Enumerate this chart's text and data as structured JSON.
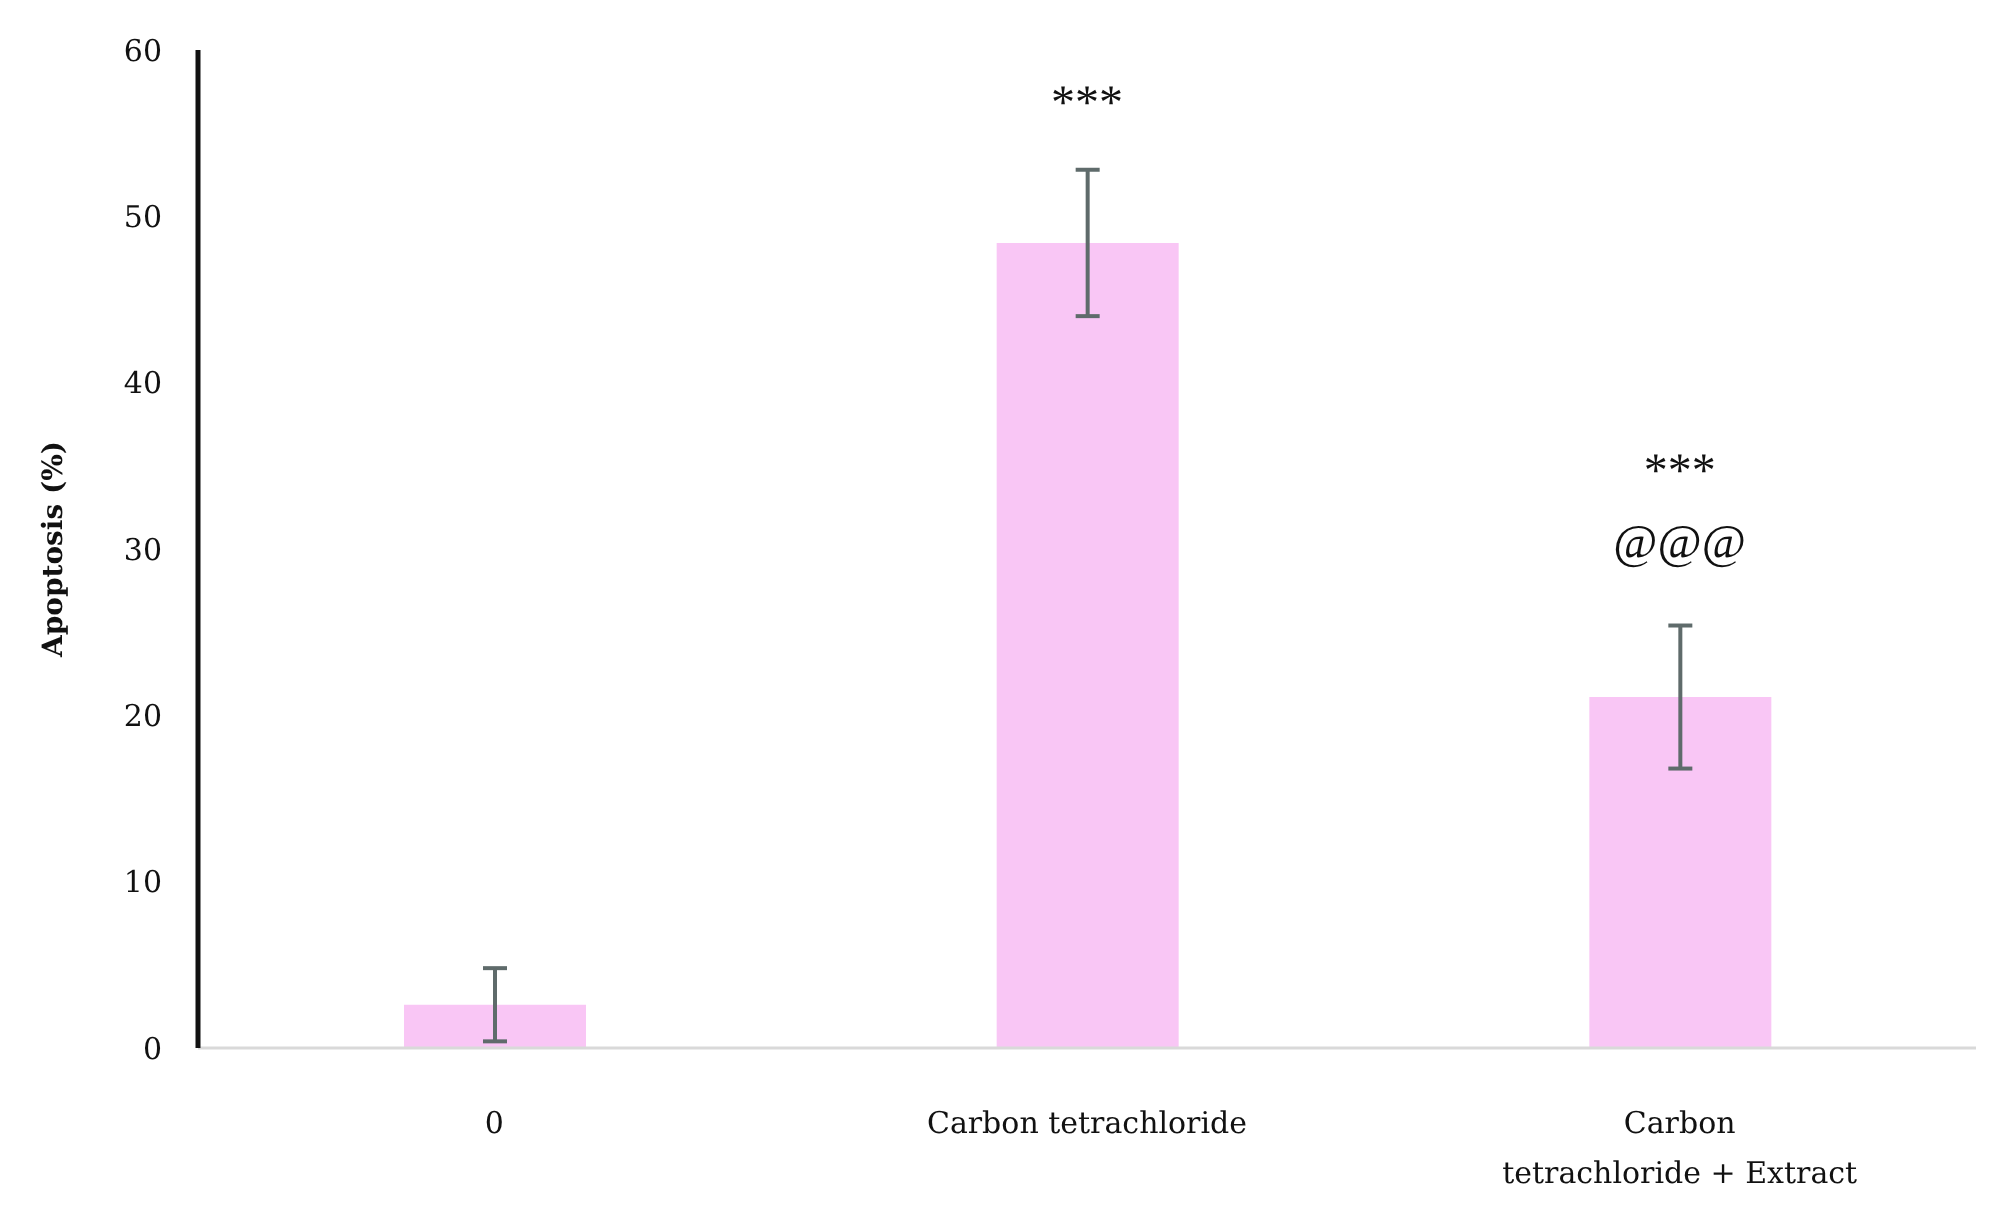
{
  "chart_data": {
    "type": "bar",
    "ylabel": "Apoptosis (%)",
    "categories": [
      "0",
      "Carbon tetrachloride",
      "Carbon\ntetrachloride + Extract"
    ],
    "values": [
      2.6,
      48.4,
      21.1
    ],
    "errors": [
      2.2,
      4.4,
      4.3
    ],
    "color": "#f9c6f5",
    "ylim": [
      0,
      60
    ],
    "yticks": [
      0,
      10,
      20,
      30,
      40,
      50,
      60
    ],
    "annotations": [
      "***",
      "***",
      "@@@"
    ]
  }
}
